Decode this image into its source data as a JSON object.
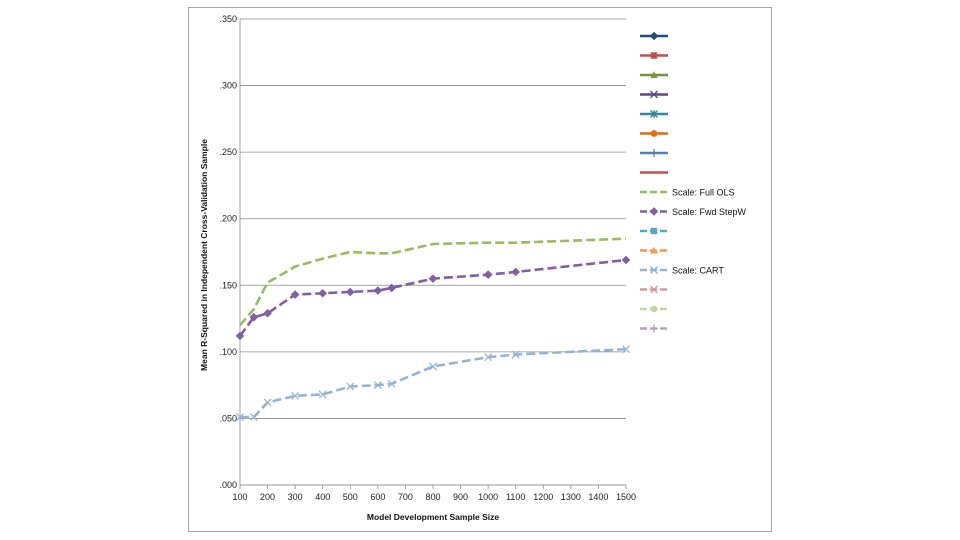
{
  "chart_data": {
    "type": "line",
    "title": "",
    "xlabel": "Model Development Sample Size",
    "ylabel": "Mean R-Squared in Independent Cross-Validation Sample",
    "xlim": [
      100,
      1500
    ],
    "ylim": [
      0.0,
      0.35
    ],
    "x_ticks": [
      100,
      200,
      300,
      400,
      500,
      600,
      700,
      800,
      900,
      1000,
      1100,
      1200,
      1300,
      1400,
      1500
    ],
    "y_ticks": [
      0.0,
      0.05,
      0.1,
      0.15,
      0.2,
      0.25,
      0.3,
      0.35
    ],
    "y_tick_labels": [
      ".000",
      ".050",
      ".100",
      ".150",
      ".200",
      ".250",
      ".300",
      ".350"
    ],
    "series": [
      {
        "name": "Scale: Full OLS",
        "color": "#9bbb59",
        "marker": "none",
        "x": [
          100,
          150,
          200,
          300,
          400,
          500,
          600,
          650,
          800,
          1000,
          1100,
          1500
        ],
        "y": [
          0.12,
          0.132,
          0.152,
          0.164,
          0.17,
          0.175,
          0.174,
          0.174,
          0.181,
          0.182,
          0.182,
          0.185
        ]
      },
      {
        "name": "Scale: Fwd StepW",
        "color": "#7f5fa5",
        "marker": "diamond",
        "x": [
          100,
          150,
          200,
          300,
          400,
          500,
          600,
          650,
          800,
          1000,
          1100,
          1500
        ],
        "y": [
          0.112,
          0.126,
          0.129,
          0.143,
          0.144,
          0.145,
          0.146,
          0.148,
          0.155,
          0.158,
          0.16,
          0.169
        ]
      },
      {
        "name": "Scale: CART",
        "color": "#95b3d7",
        "marker": "x",
        "x": [
          100,
          150,
          200,
          300,
          400,
          500,
          600,
          650,
          800,
          1000,
          1100,
          1500
        ],
        "y": [
          0.051,
          0.051,
          0.062,
          0.067,
          0.068,
          0.074,
          0.075,
          0.076,
          0.089,
          0.096,
          0.098,
          0.102
        ]
      }
    ],
    "legend": [
      {
        "label": "",
        "color": "#1f4e79",
        "marker": "diamond",
        "dash": false
      },
      {
        "label": "",
        "color": "#c0504d",
        "marker": "square",
        "dash": false
      },
      {
        "label": "",
        "color": "#77933c",
        "marker": "triangle",
        "dash": false
      },
      {
        "label": "",
        "color": "#5f497a",
        "marker": "x",
        "dash": false
      },
      {
        "label": "",
        "color": "#31859c",
        "marker": "star",
        "dash": false
      },
      {
        "label": "",
        "color": "#e46c0a",
        "marker": "circle",
        "dash": false
      },
      {
        "label": "",
        "color": "#4f81bd",
        "marker": "plus",
        "dash": false
      },
      {
        "label": "",
        "color": "#c0504d",
        "marker": "none",
        "dash": false
      },
      {
        "label": "Scale: Full OLS",
        "color": "#9bbb59",
        "marker": "none",
        "dash": true
      },
      {
        "label": "Scale: Fwd StepW",
        "color": "#7f5fa5",
        "marker": "diamond",
        "dash": true
      },
      {
        "label": "",
        "color": "#4bacc6",
        "marker": "square",
        "dash": true
      },
      {
        "label": "",
        "color": "#f79646",
        "marker": "triangle",
        "dash": true
      },
      {
        "label": "Scale: CART",
        "color": "#95b3d7",
        "marker": "x",
        "dash": true
      },
      {
        "label": "",
        "color": "#d99694",
        "marker": "x",
        "dash": true
      },
      {
        "label": "",
        "color": "#c3d69b",
        "marker": "circle",
        "dash": true
      },
      {
        "label": "",
        "color": "#b3a2c7",
        "marker": "plus",
        "dash": true
      }
    ],
    "legend_position": "right",
    "grid": "horizontal"
  }
}
